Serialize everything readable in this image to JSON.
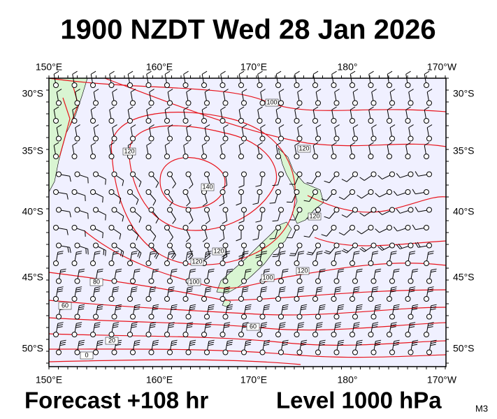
{
  "header": {
    "title": "1900 NZDT Wed 28 Jan 2026"
  },
  "map": {
    "lon_labels": [
      "150°E",
      "160°E",
      "170°E",
      "180°",
      "170°W"
    ],
    "lat_labels": [
      "30°S",
      "35°S",
      "40°S",
      "45°S",
      "50°S"
    ],
    "contour_labels": [
      "100",
      "120",
      "120",
      "140",
      "120",
      "120",
      "100",
      "80",
      "60",
      "60",
      "20",
      "0",
      "120",
      "120",
      "100"
    ]
  },
  "footer": {
    "forecast": "Forecast +108 hr",
    "level": "Level 1000 hPa",
    "model": "M3"
  }
}
